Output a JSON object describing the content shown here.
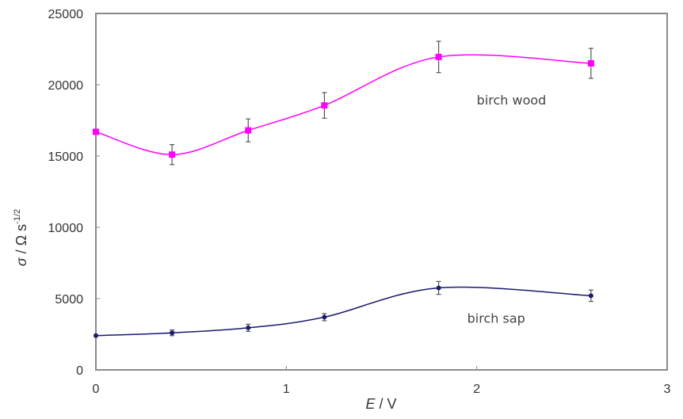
{
  "chart_data": {
    "type": "line",
    "title": "",
    "xlabel": "E / V",
    "ylabel": "σ / Ω s^-1/2",
    "xlim": [
      0,
      3
    ],
    "ylim": [
      0,
      25000
    ],
    "x_ticks": [
      "0",
      "1",
      "2",
      "3"
    ],
    "y_ticks": [
      "0",
      "5000",
      "10000",
      "15000",
      "20000",
      "25000"
    ],
    "grid": false,
    "legend": "none (inline annotations)",
    "x": [
      0,
      0.4,
      0.8,
      1.2,
      1.8,
      2.6
    ],
    "series": [
      {
        "name": "birch wood",
        "color": "#ff00ff",
        "values": [
          16700,
          15100,
          16800,
          18550,
          21950,
          21500
        ],
        "error": [
          0,
          700,
          800,
          900,
          1100,
          1050
        ],
        "smooth": true
      },
      {
        "name": "birch sap",
        "color": "#1a1a6e",
        "values": [
          2400,
          2600,
          2950,
          3700,
          5750,
          5200
        ],
        "error": [
          0,
          200,
          250,
          250,
          450,
          400
        ],
        "smooth": true
      }
    ],
    "annotations": [
      {
        "text": "birch wood",
        "x": 2.0,
        "y": 18600
      },
      {
        "text": "birch sap",
        "x": 1.95,
        "y": 3300
      }
    ]
  },
  "labels": {
    "xlabel_italic": "E",
    "xlabel_rest": " / V",
    "ylabel_sigma": "σ",
    "ylabel_rest": " / Ω s",
    "ylabel_sup": "-1/2"
  }
}
